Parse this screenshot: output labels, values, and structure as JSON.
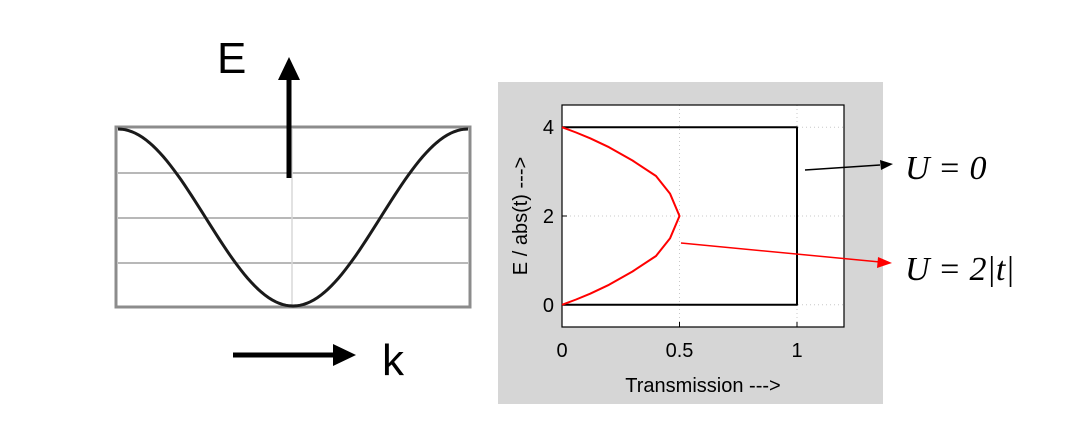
{
  "dispersion": {
    "energy_label": "E",
    "momentum_label": "k"
  },
  "chart_data": {
    "type": "line",
    "xlabel": "Transmission --->",
    "ylabel": "E / abs(t) --->",
    "xlim": [
      0,
      1.2
    ],
    "ylim": [
      -0.5,
      4.5
    ],
    "x_ticks": [
      "0",
      "0.5",
      "1"
    ],
    "x_tick_values": [
      0,
      0.5,
      1
    ],
    "y_ticks": [
      "0",
      "2",
      "4"
    ],
    "y_tick_values": [
      0,
      2,
      4
    ],
    "grid": true,
    "series": [
      {
        "color": "#000000",
        "x": [
          0,
          1,
          1,
          0
        ],
        "y": [
          0,
          0,
          4,
          4
        ]
      },
      {
        "color": "#ff0000",
        "x": [
          0,
          0.06,
          0.12,
          0.2,
          0.3,
          0.4,
          0.46,
          0.5,
          0.46,
          0.4,
          0.3,
          0.2,
          0.12,
          0.06,
          0
        ],
        "y": [
          0,
          0.12,
          0.25,
          0.45,
          0.75,
          1.1,
          1.5,
          2.0,
          2.5,
          2.9,
          3.25,
          3.55,
          3.75,
          3.88,
          4.0
        ]
      }
    ]
  },
  "annotations": {
    "u_zero": "U = 0",
    "u_two_t": "U = 2|t|"
  },
  "colors": {
    "plot_frame": "#d6d6d6",
    "red_curve": "#ff0000",
    "grid": "#c8c8c8"
  }
}
